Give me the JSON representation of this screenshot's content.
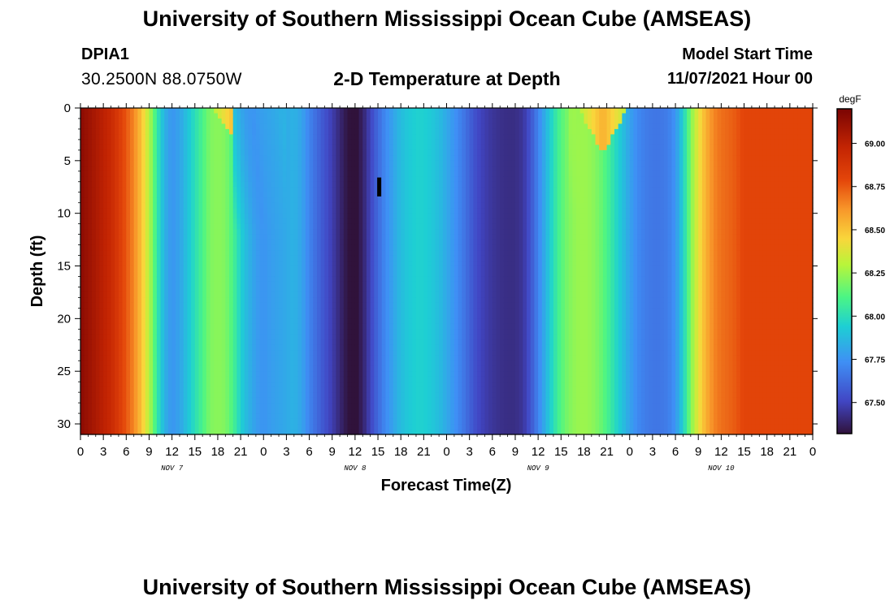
{
  "header": {
    "title": "University of Southern Mississippi Ocean Cube (AMSEAS)",
    "station_id": "DPIA1",
    "coordinates": "30.2500N  88.0750W",
    "subtitle": "2-D Temperature at Depth",
    "model_start_label": "Model Start Time",
    "model_start_value": "11/07/2021 Hour 00"
  },
  "footer": {
    "title": "University of Southern Mississippi Ocean Cube (AMSEAS)"
  },
  "chart_data": {
    "type": "heatmap",
    "title": "2-D Temperature at Depth",
    "xlabel": "Forecast Time(Z)",
    "ylabel": "Depth (ft)",
    "x_range_hours": [
      0,
      96
    ],
    "y_range_ft": [
      0,
      31
    ],
    "x_tick_labels": [
      "0",
      "3",
      "6",
      "9",
      "12",
      "15",
      "18",
      "21",
      "0",
      "3",
      "6",
      "9",
      "12",
      "15",
      "18",
      "21",
      "0",
      "3",
      "6",
      "9",
      "12",
      "15",
      "18",
      "21",
      "0",
      "3",
      "6",
      "9",
      "12",
      "15",
      "18",
      "21",
      "0"
    ],
    "day_labels": [
      {
        "label": "NOV 7",
        "center_hour": 12
      },
      {
        "label": "NOV 8",
        "center_hour": 36
      },
      {
        "label": "NOV 9",
        "center_hour": 60
      },
      {
        "label": "NOV 10",
        "center_hour": 84
      }
    ],
    "y_tick_labels": [
      "0",
      "5",
      "10",
      "15",
      "20",
      "25",
      "30"
    ],
    "y_ticks": [
      0,
      5,
      10,
      15,
      20,
      25,
      30
    ],
    "colorbar": {
      "unit": "degF",
      "range": [
        67.32,
        69.2
      ],
      "tick_values": [
        67.5,
        67.75,
        68.0,
        68.25,
        68.5,
        68.75,
        69.0
      ],
      "tick_labels": [
        "67.50",
        "67.75",
        "68.00",
        "68.25",
        "68.50",
        "68.75",
        "69.00"
      ]
    },
    "temperature_profile_hourly_degF": [
      69.15,
      69.1,
      69.05,
      69.0,
      68.95,
      68.85,
      68.75,
      68.65,
      68.5,
      68.3,
      68.05,
      67.85,
      67.75,
      67.8,
      67.9,
      68.0,
      68.1,
      68.2,
      68.22,
      68.2,
      68.1,
      67.95,
      67.85,
      67.78,
      67.75,
      67.78,
      67.8,
      67.82,
      67.85,
      67.8,
      67.7,
      67.62,
      67.55,
      67.48,
      67.4,
      67.33,
      67.3,
      67.38,
      67.5,
      67.62,
      67.72,
      67.8,
      67.88,
      67.92,
      67.95,
      67.95,
      67.92,
      67.88,
      67.82,
      67.75,
      67.68,
      67.6,
      67.52,
      67.48,
      67.45,
      67.43,
      67.42,
      67.42,
      67.45,
      67.55,
      67.7,
      67.85,
      68.0,
      68.12,
      68.2,
      68.24,
      68.25,
      68.23,
      68.18,
      68.1,
      68.0,
      67.9,
      67.8,
      67.72,
      67.68,
      67.66,
      67.66,
      67.68,
      67.75,
      67.95,
      68.2,
      68.4,
      68.55,
      68.65,
      68.7,
      68.72,
      68.75,
      68.8,
      68.8
    ]
  }
}
